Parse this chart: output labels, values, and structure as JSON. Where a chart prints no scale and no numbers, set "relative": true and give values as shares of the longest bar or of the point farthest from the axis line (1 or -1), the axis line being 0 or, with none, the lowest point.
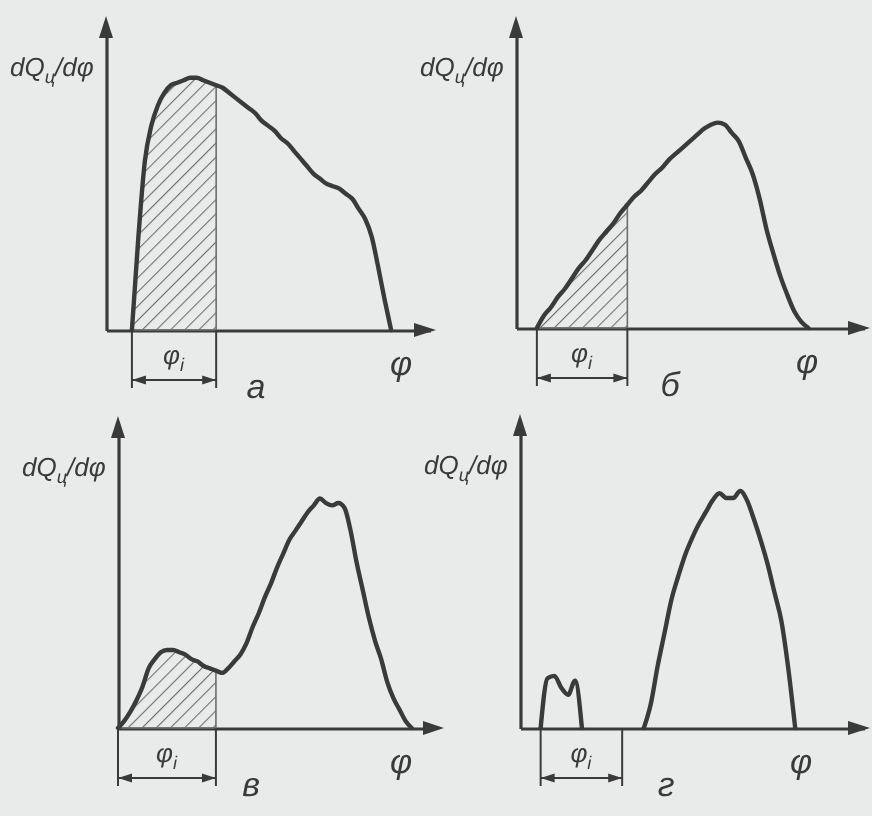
{
  "chart_data": [
    {
      "type": "line",
      "title": "а",
      "xlabel": "φ",
      "ylabel": "dQ$_{ц}$/dφ",
      "relative": true,
      "categories": [
        null,
        null,
        null,
        null,
        null,
        null,
        null,
        null,
        null,
        null,
        null,
        null,
        null,
        null,
        null,
        null,
        null,
        null,
        null,
        null,
        null,
        null,
        null,
        null,
        null,
        null,
        null,
        null,
        null,
        null,
        null,
        null,
        null,
        null,
        null,
        null,
        null,
        null,
        null,
        null,
        null,
        null,
        null,
        null,
        null,
        null,
        null,
        null,
        null,
        null,
        null
      ],
      "series": [
        {
          "color": "#3a3a3a",
          "values": [
            null,
            null,
            null,
            null,
            0,
            0.37,
            0.67,
            0.81,
            0.89,
            0.94,
            0.97,
            0.98,
            0.99,
            1,
            1,
            0.99,
            0.98,
            0.97,
            0.96,
            0.94,
            0.92,
            0.9,
            0.88,
            0.86,
            0.83,
            0.81,
            0.79,
            0.76,
            0.74,
            0.71,
            0.68,
            0.65,
            0.62,
            0.6,
            0.58,
            0.57,
            0.56,
            0.54,
            0.52,
            0.48,
            0.44,
            0.37,
            0.25,
            0.12,
            0,
            null,
            null,
            null,
            null,
            null,
            null
          ]
        },
        {
          "type": "area",
          "color": "#6e6e6e",
          "values": [
            null,
            null,
            null,
            null,
            0,
            0.37,
            0.67,
            0.81,
            0.89,
            0.94,
            0.97,
            0.98,
            0.99,
            1,
            1,
            0.99,
            0.98,
            0.97,
            null,
            null,
            null,
            null,
            null,
            null,
            null,
            null,
            null,
            null,
            null,
            null,
            null,
            null,
            null,
            null,
            null,
            null,
            null,
            null,
            null,
            null,
            null,
            null,
            null,
            null,
            null,
            null,
            null,
            null,
            null,
            null,
            null
          ]
        }
      ],
      "annotations": [
        "φ$_{i}$"
      ]
    },
    {
      "type": "line",
      "title": "б",
      "xlabel": "φ",
      "ylabel": "dQ$_{ц}$/dφ",
      "relative": true,
      "categories": [
        null,
        null,
        null,
        null,
        null,
        null,
        null,
        null,
        null,
        null,
        null,
        null,
        null,
        null,
        null,
        null,
        null,
        null,
        null,
        null,
        null,
        null,
        null,
        null,
        null,
        null,
        null,
        null,
        null,
        null,
        null,
        null,
        null,
        null,
        null,
        null,
        null,
        null,
        null,
        null,
        null,
        null,
        null,
        null,
        null,
        null,
        null,
        null,
        null,
        null,
        null
      ],
      "series": [
        {
          "color": "#3a3a3a",
          "values": [
            null,
            null,
            null,
            0,
            0.06,
            0.1,
            0.15,
            0.19,
            0.24,
            0.29,
            0.33,
            0.38,
            0.43,
            0.47,
            0.51,
            0.56,
            0.6,
            0.64,
            0.67,
            0.71,
            0.75,
            0.78,
            0.82,
            0.85,
            0.88,
            0.91,
            0.94,
            0.97,
            0.99,
            1,
            0.99,
            0.95,
            0.91,
            0.83,
            0.75,
            0.63,
            0.48,
            0.36,
            0.25,
            0.16,
            0.08,
            0.03,
            0,
            null,
            null,
            null,
            null,
            null,
            null,
            null,
            null
          ]
        },
        {
          "type": "area",
          "color": "#6e6e6e",
          "values": [
            null,
            null,
            null,
            0,
            0.06,
            0.1,
            0.15,
            0.19,
            0.24,
            0.29,
            0.33,
            0.38,
            0.43,
            0.47,
            0.51,
            0.56,
            0.6,
            null,
            null,
            null,
            null,
            null,
            null,
            null,
            null,
            null,
            null,
            null,
            null,
            null,
            null,
            null,
            null,
            null,
            null,
            null,
            null,
            null,
            null,
            null,
            null,
            null,
            null,
            null,
            null,
            null,
            null,
            null,
            null,
            null,
            null
          ]
        }
      ],
      "annotations": [
        "φ$_{i}$"
      ]
    },
    {
      "type": "line",
      "title": "в",
      "xlabel": "φ",
      "ylabel": "dQ$_{ц}$/dφ",
      "relative": true,
      "categories": [
        null,
        null,
        null,
        null,
        null,
        null,
        null,
        null,
        null,
        null,
        null,
        null,
        null,
        null,
        null,
        null,
        null,
        null,
        null,
        null,
        null,
        null,
        null,
        null,
        null,
        null,
        null,
        null,
        null,
        null,
        null,
        null,
        null,
        null,
        null,
        null,
        null,
        null,
        null,
        null,
        null,
        null,
        null,
        null,
        null,
        null,
        null,
        null,
        null,
        null,
        null
      ],
      "series": [
        {
          "color": "#3a3a3a",
          "values": [
            0,
            0.03,
            0.07,
            0.12,
            0.18,
            0.26,
            0.3,
            0.33,
            0.34,
            0.34,
            0.33,
            0.32,
            0.3,
            0.29,
            0.27,
            0.26,
            0.25,
            0.24,
            0.26,
            0.29,
            0.32,
            0.37,
            0.44,
            0.5,
            0.57,
            0.63,
            0.7,
            0.76,
            0.82,
            0.86,
            0.9,
            0.94,
            0.97,
            1,
            0.98,
            0.97,
            0.98,
            0.96,
            0.86,
            0.72,
            0.6,
            0.48,
            0.38,
            0.3,
            0.2,
            0.13,
            0.08,
            0.03,
            0,
            null,
            null
          ]
        },
        {
          "type": "area",
          "color": "#6e6e6e",
          "values": [
            0,
            0.03,
            0.07,
            0.12,
            0.18,
            0.26,
            0.3,
            0.33,
            0.34,
            0.34,
            0.33,
            0.32,
            0.3,
            0.29,
            0.27,
            0.26,
            0.25,
            null,
            null,
            null,
            null,
            null,
            null,
            null,
            null,
            null,
            null,
            null,
            null,
            null,
            null,
            null,
            null,
            null,
            null,
            null,
            null,
            null,
            null,
            null,
            null,
            null,
            null,
            null,
            null,
            null,
            null,
            null,
            null,
            null,
            null
          ]
        }
      ],
      "annotations": [
        "φ$_{i}$"
      ]
    },
    {
      "type": "line",
      "title": "г",
      "xlabel": "φ",
      "ylabel": "dQ$_{ц}$/dφ",
      "relative": true,
      "categories": [
        null,
        null,
        null,
        null,
        null,
        null,
        null,
        null,
        null,
        null,
        null,
        null,
        null,
        null,
        null,
        null,
        null,
        null,
        null,
        null,
        null,
        null,
        null,
        null,
        null,
        null,
        null,
        null,
        null,
        null,
        null,
        null,
        null,
        null,
        null,
        null,
        null,
        null,
        null,
        null,
        null,
        null,
        null,
        null,
        null,
        null,
        null,
        null,
        null,
        null,
        null
      ],
      "series": [
        {
          "color": "#3a3a3a",
          "values": [
            null,
            null,
            null,
            0,
            0.21,
            0.22,
            0.17,
            0.14,
            0.2,
            0,
            null,
            null,
            null,
            null,
            null,
            null,
            null,
            null,
            null,
            null,
            null,
            null,
            null,
            null,
            null,
            null,
            null,
            null,
            null,
            null,
            null,
            null,
            null,
            null,
            null,
            null,
            null,
            null,
            null,
            null,
            null,
            null,
            null,
            null,
            null,
            null,
            null,
            null,
            null,
            null,
            null
          ]
        },
        {
          "color": "#3a3a3a",
          "values": [
            null,
            null,
            null,
            null,
            null,
            null,
            null,
            null,
            null,
            null,
            null,
            null,
            null,
            null,
            null,
            null,
            null,
            null,
            0,
            0.1,
            0.26,
            0.4,
            0.54,
            0.64,
            0.73,
            0.8,
            0.86,
            0.91,
            0.96,
            0.99,
            0.97,
            0.97,
            1,
            0.96,
            0.88,
            0.79,
            0.69,
            0.57,
            0.45,
            0.25,
            0,
            null,
            null,
            null,
            null,
            null,
            null,
            null,
            null,
            null,
            null
          ]
        }
      ],
      "annotations": [
        "φ$_{i}$"
      ]
    }
  ]
}
